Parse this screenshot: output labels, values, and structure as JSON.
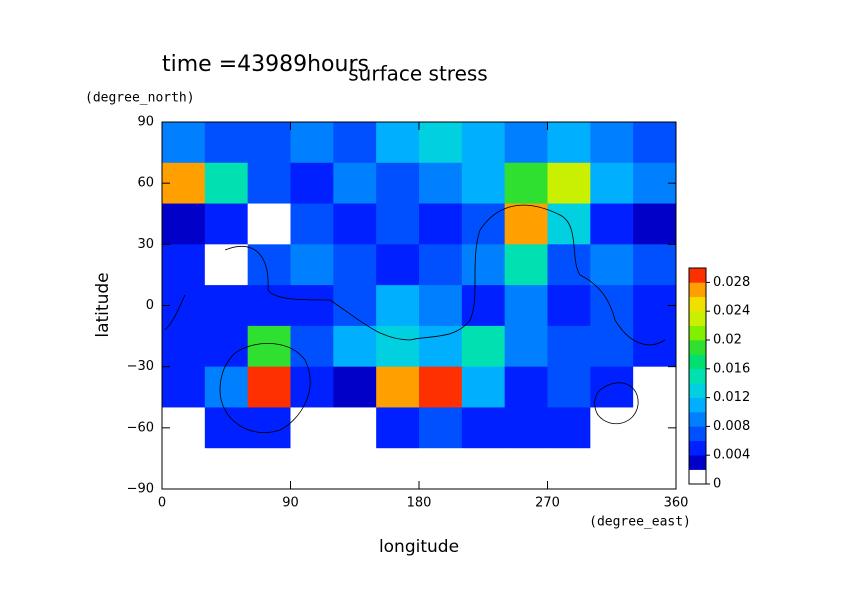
{
  "chart_data": {
    "type": "contour",
    "title": "surface stress",
    "annotation": "time =43989hours",
    "x_label": "longitude",
    "x_units": "(degree_east)",
    "y_label": "latitude",
    "y_units": "(degree_north)",
    "xlim": [
      0,
      360
    ],
    "xticks": [
      0,
      90,
      180,
      270,
      360
    ],
    "ylim": [
      -90,
      90
    ],
    "yticks": [
      {
        "value": -90,
        "label": "−90"
      },
      {
        "value": -60,
        "label": "−60"
      },
      {
        "value": -30,
        "label": "−30"
      },
      0,
      30,
      60,
      90
    ],
    "x": [
      15,
      45,
      75,
      105,
      135,
      165,
      195,
      225,
      255,
      285,
      315,
      345
    ],
    "y": [
      80,
      60,
      40,
      20,
      0,
      -20,
      -40,
      -60,
      -80
    ],
    "z": [
      [
        0.008,
        0.006,
        0.006,
        0.008,
        0.006,
        0.01,
        0.012,
        0.01,
        0.008,
        0.01,
        0.008,
        0.006
      ],
      [
        0.026,
        0.014,
        0.006,
        0.004,
        0.008,
        0.006,
        0.008,
        0.01,
        0.018,
        0.022,
        0.01,
        0.008
      ],
      [
        0.002,
        0.004,
        0.001,
        0.006,
        0.004,
        0.006,
        0.004,
        0.006,
        0.026,
        0.012,
        0.004,
        0.002
      ],
      [
        0.004,
        0.001,
        0.006,
        0.008,
        0.006,
        0.004,
        0.006,
        0.008,
        0.014,
        0.006,
        0.008,
        0.006
      ],
      [
        0.004,
        0.004,
        0.004,
        0.004,
        0.006,
        0.01,
        0.008,
        0.004,
        0.008,
        0.004,
        0.006,
        0.004
      ],
      [
        0.004,
        0.004,
        0.018,
        0.006,
        0.01,
        0.012,
        0.01,
        0.014,
        0.008,
        0.006,
        0.006,
        0.004
      ],
      [
        0.004,
        0.008,
        0.028,
        0.004,
        0.002,
        0.026,
        0.028,
        0.01,
        0.004,
        0.006,
        0.004,
        0.001
      ],
      [
        0.001,
        0.004,
        0.004,
        0.001,
        0.001,
        0.004,
        0.006,
        0.004,
        0.004,
        0.004,
        0.001,
        0.001
      ],
      [
        0,
        0,
        0,
        0,
        0,
        0,
        0,
        0,
        0,
        0,
        0,
        0
      ]
    ],
    "colorbar": {
      "lim": [
        0,
        0.03
      ],
      "ticks": [
        0,
        0.004,
        0.008,
        0.012,
        0.016,
        0.02,
        0.024,
        0.028
      ],
      "colors": [
        "#ffffff",
        "#0000c8",
        "#0020ff",
        "#0050ff",
        "#0080ff",
        "#00b0ff",
        "#00d0e0",
        "#00e0b0",
        "#00e070",
        "#30e030",
        "#80f000",
        "#c8f000",
        "#f0e000",
        "#ffa000",
        "#ff3000"
      ]
    }
  }
}
